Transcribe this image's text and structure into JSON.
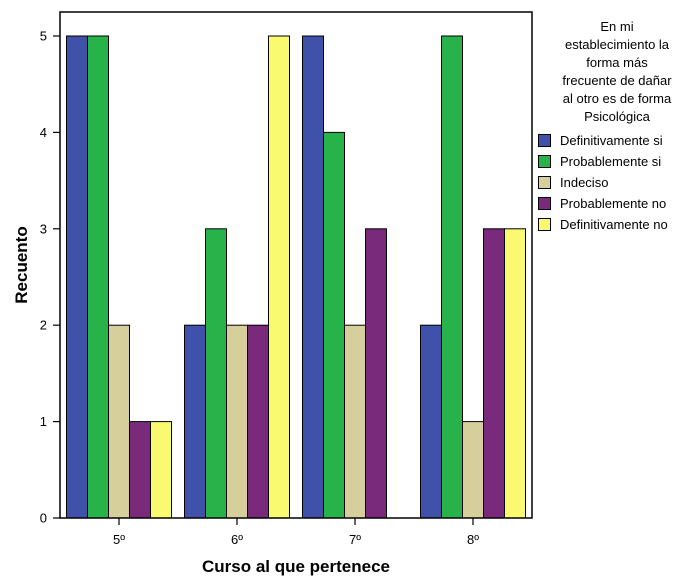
{
  "chart_data": {
    "type": "bar",
    "categories": [
      "5º",
      "6º",
      "7º",
      "8º"
    ],
    "series": [
      {
        "name": "Definitivamente si",
        "values": [
          5,
          2,
          5,
          2
        ],
        "color": "#3f51a8"
      },
      {
        "name": "Probablemente si",
        "values": [
          5,
          3,
          4,
          5
        ],
        "color": "#28b34a"
      },
      {
        "name": "Indeciso",
        "values": [
          2,
          2,
          2,
          1
        ],
        "color": "#d6cf9b"
      },
      {
        "name": "Probablemente no",
        "values": [
          1,
          2,
          3,
          3
        ],
        "color": "#7a2a7a"
      },
      {
        "name": "Definitivamente no",
        "values": [
          1,
          5,
          0,
          3
        ],
        "color": "#fafa70"
      }
    ],
    "xlabel": "Curso al que pertenece",
    "ylabel": "Recuento",
    "ylim": [
      0,
      5
    ],
    "yticks": [
      "0",
      "1",
      "2",
      "3",
      "4",
      "5"
    ],
    "legend_title_lines": [
      "En mi",
      "establecimiento la",
      "forma más",
      "frecuente de dañar",
      "al otro es de forma",
      "Psicológica"
    ],
    "legend_position": "right",
    "grid": false
  }
}
